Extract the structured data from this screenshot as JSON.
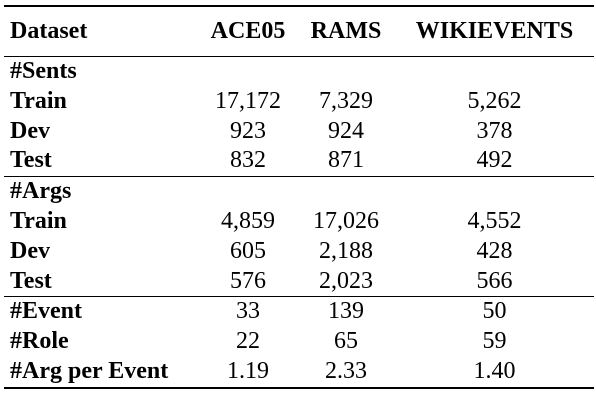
{
  "table": {
    "headers": [
      "Dataset",
      "ACE05",
      "RAMS",
      "WIKIEVENTS"
    ],
    "sections": [
      {
        "title": "#Sents",
        "rows": [
          {
            "label": "Train",
            "values": [
              "17,172",
              "7,329",
              "5,262"
            ]
          },
          {
            "label": "Dev",
            "values": [
              "923",
              "924",
              "378"
            ]
          },
          {
            "label": "Test",
            "values": [
              "832",
              "871",
              "492"
            ]
          }
        ]
      },
      {
        "title": "#Args",
        "rows": [
          {
            "label": "Train",
            "values": [
              "4,859",
              "17,026",
              "4,552"
            ]
          },
          {
            "label": "Dev",
            "values": [
              "605",
              "2,188",
              "428"
            ]
          },
          {
            "label": "Test",
            "values": [
              "576",
              "2,023",
              "566"
            ]
          }
        ]
      }
    ],
    "summary_rows": [
      {
        "label": "#Event",
        "values": [
          "33",
          "139",
          "50"
        ]
      },
      {
        "label": "#Role",
        "values": [
          "22",
          "65",
          "59"
        ]
      },
      {
        "label": "#Arg per Event",
        "values": [
          "1.19",
          "2.33",
          "1.40"
        ]
      }
    ]
  }
}
